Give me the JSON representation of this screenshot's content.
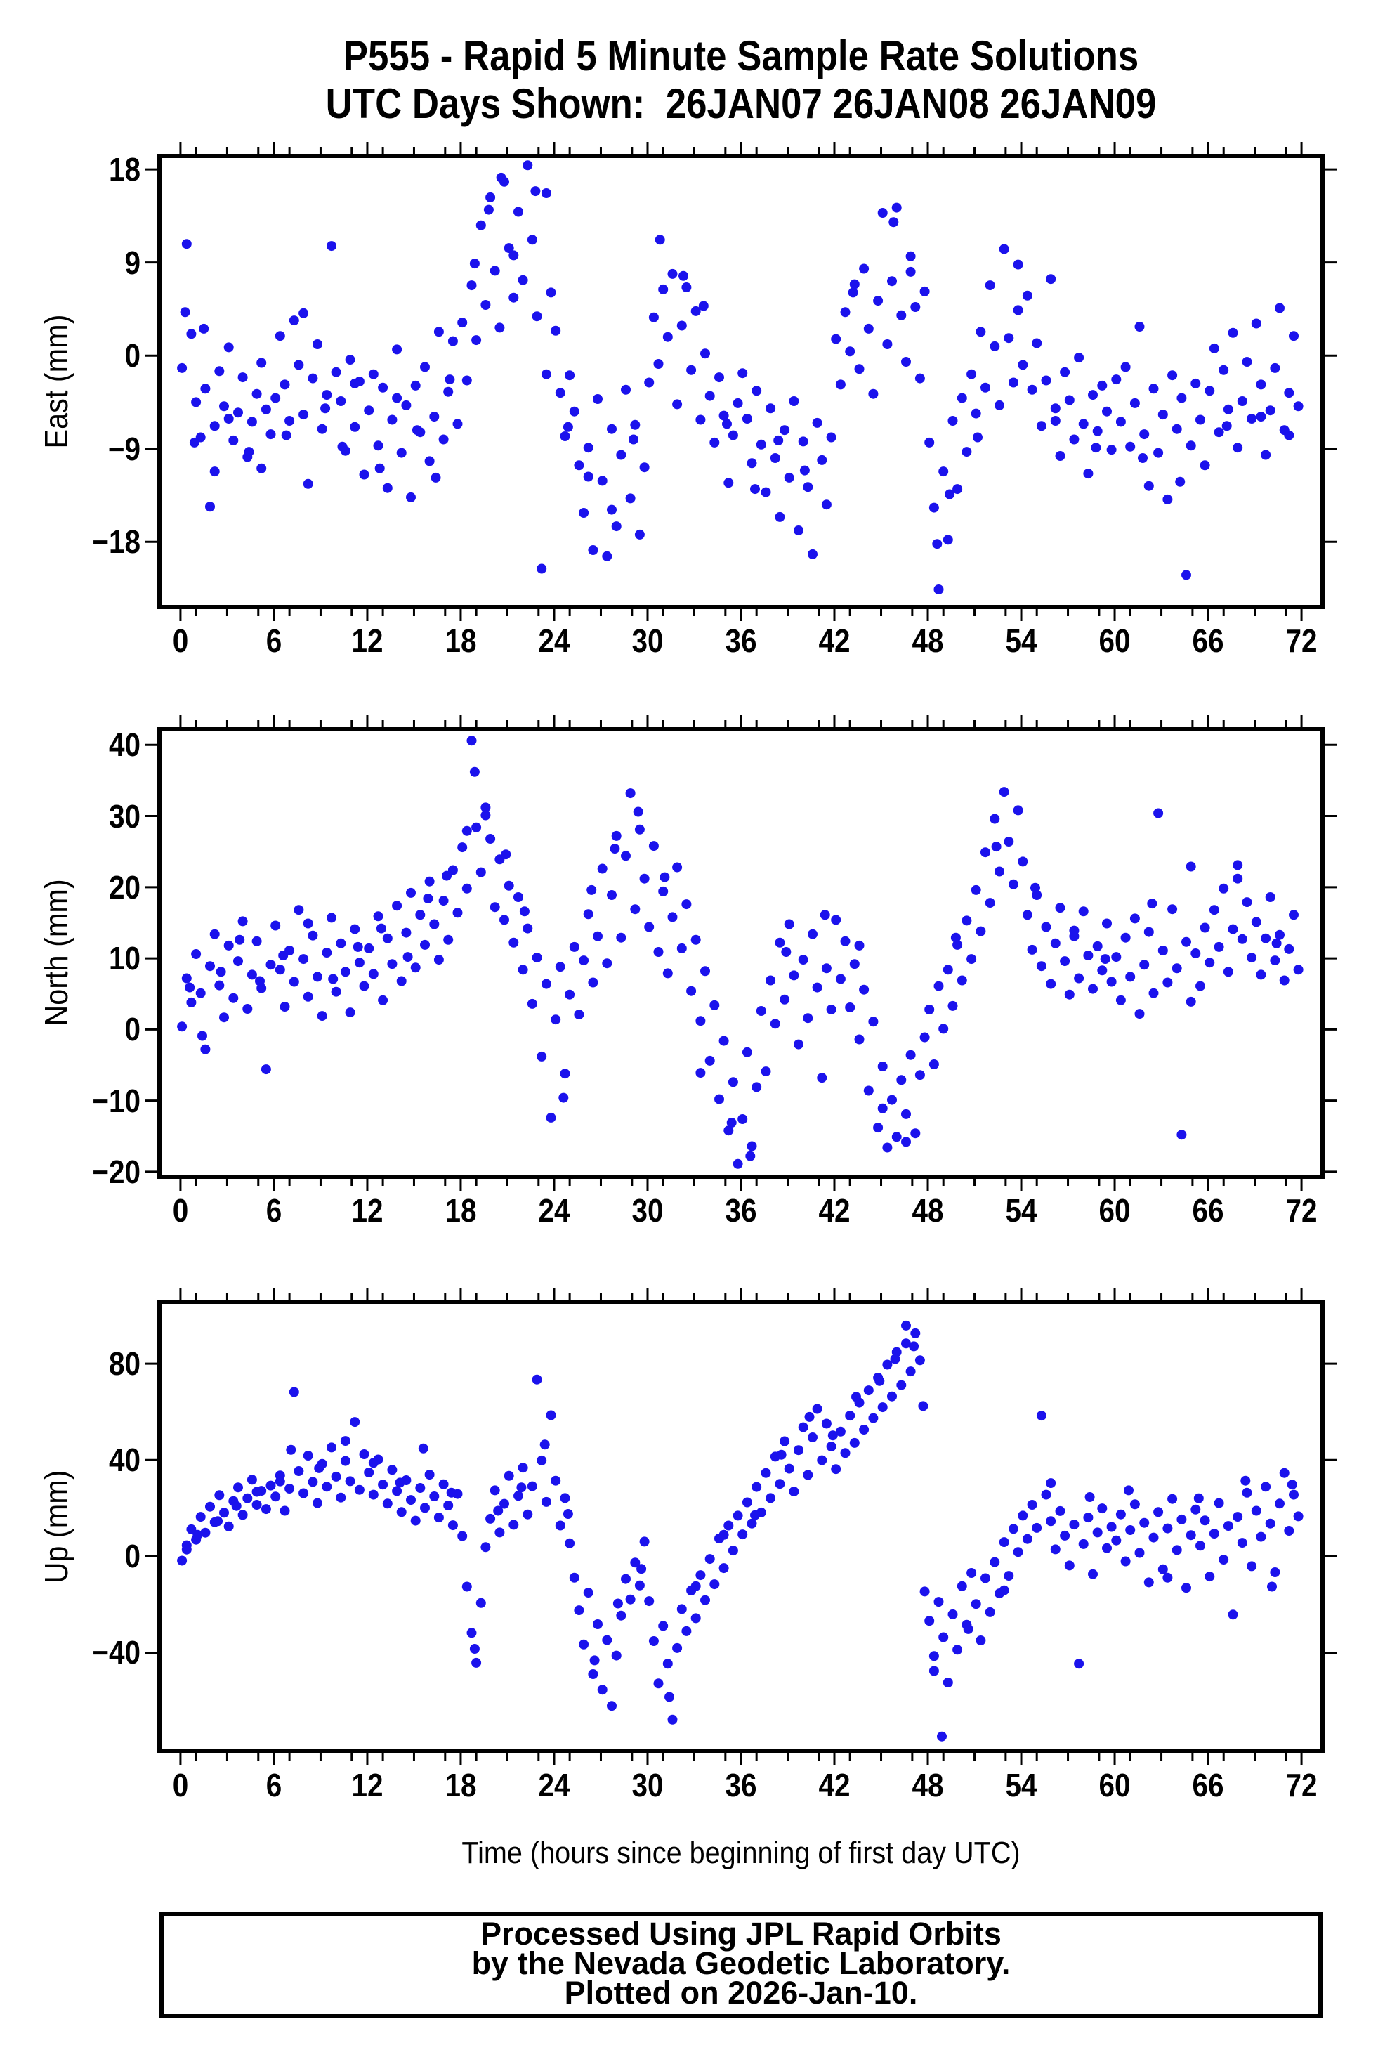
{
  "title": {
    "line1": "P555 - Rapid 5 Minute Sample Rate Solutions",
    "line2": "UTC Days Shown:  26JAN07 26JAN08 26JAN09"
  },
  "xaxis": {
    "label": "Time (hours since beginning of first day UTC)",
    "major_ticks": [
      0,
      6,
      12,
      18,
      24,
      30,
      36,
      42,
      48,
      54,
      60,
      66,
      72
    ],
    "minor_step": 2,
    "range": [
      -1.35,
      73.35
    ]
  },
  "footer": {
    "line1": "Processed Using JPL Rapid Orbits",
    "line2": "by the Nevada Geodetic Laboratory.",
    "line3": "Plotted on 2026-Jan-10."
  },
  "style": {
    "point_color": "#1b12ec",
    "frame_color": "#000000",
    "point_radius": 7
  },
  "chart_data": [
    {
      "type": "scatter",
      "name": "east",
      "ylabel": "East (mm)",
      "yticks": [
        18,
        9,
        0,
        -9,
        -18
      ],
      "yrange": [
        -24.3,
        19.3
      ],
      "x_start": 0.1,
      "x_step": 0.3,
      "y": [
        -1.2,
        10.8,
        2.1,
        -4.5,
        -7.9,
        -3.2,
        -14.6,
        -6.8,
        -1.5,
        -4.9,
        0.8,
        -8.2,
        -5.5,
        -2.1,
        -9.8,
        -6.4,
        -3.7,
        -10.9,
        -5.2,
        -7.6,
        -4.1,
        1.9,
        -2.8,
        -6.3,
        3.4,
        -0.9,
        -5.7,
        -12.4,
        -2.2,
        1.1,
        -7.1,
        -3.8,
        10.6,
        -1.6,
        -4.4,
        -9.2,
        -0.4,
        -6.9,
        -2.5,
        -11.5,
        -5.3,
        -1.8,
        -8.7,
        -3.1,
        -12.8,
        -6.2,
        0.6,
        -9.4,
        -4.8,
        -13.7,
        -2.9,
        -7.4,
        -1.1,
        -10.2,
        -5.9,
        2.3,
        -8.1,
        -3.5,
        1.4,
        -6.6,
        3.2,
        -2.4,
        6.8,
        1.5,
        12.6,
        4.9,
        15.3,
        8.2,
        2.7,
        16.8,
        10.4,
        5.6,
        13.9,
        7.3,
        18.4,
        11.2,
        3.8,
        -20.6,
        15.7,
        6.1,
        2.4,
        -3.6,
        -7.8,
        -1.9,
        -5.4,
        -10.6,
        -15.2,
        -8.9,
        -18.8,
        -4.2,
        -12.1,
        -19.4,
        -7.1,
        -16.5,
        -9.6,
        -3.3,
        -13.8,
        -6.7,
        -17.3,
        -10.8,
        -2.6,
        3.7,
        -0.8,
        6.4,
        1.8,
        7.9,
        -4.7,
        2.9,
        6.6,
        -1.4,
        4.3,
        -6.2,
        0.2,
        -3.9,
        -8.4,
        -2.1,
        -5.8,
        -12.3,
        -7.7,
        -4.6,
        -1.7,
        -6.1,
        -10.4,
        -3.4,
        -8.6,
        -13.2,
        -5.1,
        -9.9,
        -15.6,
        -7.2,
        -11.8,
        -4.4,
        -16.9,
        -8.3,
        -12.7,
        -19.2,
        -6.5,
        -10.1,
        -14.4,
        -7.9,
        1.6,
        -2.8,
        4.2,
        0.4,
        6.9,
        -1.3,
        8.4,
        2.6,
        -3.7,
        5.3,
        13.8,
        1.1,
        7.2,
        14.3,
        3.9,
        -0.6,
        9.6,
        4.7,
        -2.2,
        6.2,
        -8.4,
        -14.7,
        -22.6,
        -11.2,
        -17.8,
        -6.3,
        -12.9,
        -4.1,
        -9.3,
        -1.8,
        -5.6,
        2.3,
        -3.1,
        6.8,
        0.9,
        -4.8,
        10.3,
        1.7,
        -2.6,
        4.4,
        -0.9,
        5.8,
        -3.3,
        1.2,
        -6.8,
        -2.4,
        7.4,
        -5.1,
        -9.7,
        -1.6,
        -4.3,
        -8.1,
        -0.2,
        -6.6,
        -11.4,
        -3.8,
        -7.3,
        -2.9,
        -5.4,
        -9.1,
        -2.3,
        -6.4,
        -1.1,
        -8.8,
        -4.6,
        2.8,
        -7.6,
        -12.6,
        -3.2,
        -9.4,
        -5.7,
        -13.9,
        -1.9,
        -7.1,
        -4.1,
        -21.2,
        -8.7,
        -2.7,
        -6.2,
        -10.6,
        -3.4,
        0.7,
        -7.4,
        -1.4,
        -5.2,
        2.2,
        -8.9,
        -4.4,
        -0.6,
        -6.1,
        3.1,
        -2.8,
        -9.6,
        -5.3,
        -1.2,
        4.6,
        -7.2,
        -3.6,
        1.9,
        -4.9
      ],
      "extra_points": [
        [
          0.3,
          4.2
        ],
        [
          0.9,
          -8.4
        ],
        [
          1.5,
          2.6
        ],
        [
          2.2,
          -11.2
        ],
        [
          3.1,
          -6.1
        ],
        [
          4.4,
          -9.3
        ],
        [
          5.2,
          -0.7
        ],
        [
          6.8,
          -7.7
        ],
        [
          7.9,
          4.1
        ],
        [
          9.3,
          -5.1
        ],
        [
          10.4,
          -8.8
        ],
        [
          11.2,
          -2.7
        ],
        [
          12.8,
          -10.9
        ],
        [
          13.9,
          -4.1
        ],
        [
          15.2,
          -7.2
        ],
        [
          16.4,
          -11.8
        ],
        [
          17.3,
          -2.3
        ],
        [
          18.9,
          8.9
        ],
        [
          19.8,
          14.1
        ],
        [
          20.6,
          17.2
        ],
        [
          21.4,
          9.7
        ],
        [
          22.8,
          15.9
        ],
        [
          23.5,
          -1.8
        ],
        [
          24.9,
          -6.9
        ],
        [
          26.2,
          -11.7
        ],
        [
          27.7,
          -14.9
        ],
        [
          29.1,
          -8.1
        ],
        [
          30.8,
          11.2
        ],
        [
          32.3,
          7.7
        ],
        [
          33.6,
          4.8
        ],
        [
          35.1,
          -6.6
        ],
        [
          36.9,
          -12.9
        ],
        [
          38.4,
          -8.2
        ],
        [
          40.1,
          -11.1
        ],
        [
          43.2,
          6.1
        ],
        [
          45.8,
          12.9
        ],
        [
          46.9,
          8.1
        ],
        [
          48.6,
          -18.2
        ],
        [
          49.4,
          -13.4
        ],
        [
          51.2,
          -7.9
        ],
        [
          53.8,
          8.8
        ],
        [
          56.2,
          -6.3
        ],
        [
          58.8,
          -8.9
        ],
        [
          61.8,
          -9.9
        ],
        [
          64.2,
          -12.2
        ],
        [
          67.2,
          -6.8
        ],
        [
          69.4,
          -5.9
        ],
        [
          71.2,
          -7.7
        ]
      ]
    },
    {
      "type": "scatter",
      "name": "north",
      "ylabel": "North (mm)",
      "yticks": [
        40,
        30,
        20,
        10,
        0,
        -10,
        -20
      ],
      "yrange": [
        -20.7,
        42.2
      ],
      "x_start": 0.1,
      "x_step": 0.3,
      "y": [
        0.4,
        7.2,
        3.8,
        10.6,
        5.1,
        -2.8,
        8.9,
        13.4,
        6.2,
        1.7,
        11.8,
        4.4,
        9.6,
        15.2,
        2.9,
        7.7,
        12.4,
        5.8,
        -5.6,
        9.1,
        14.6,
        8.4,
        3.2,
        11.1,
        6.7,
        16.8,
        9.9,
        4.6,
        13.2,
        7.4,
        1.9,
        10.8,
        15.7,
        5.3,
        12.1,
        8.1,
        2.4,
        14.1,
        9.4,
        6.1,
        11.4,
        7.8,
        15.9,
        4.1,
        12.8,
        9.2,
        17.4,
        6.8,
        13.6,
        19.2,
        8.7,
        16.1,
        11.9,
        20.8,
        14.8,
        9.8,
        18.1,
        12.6,
        22.4,
        16.4,
        25.6,
        19.8,
        40.6,
        28.4,
        22.1,
        31.2,
        26.8,
        17.2,
        23.9,
        15.4,
        20.2,
        12.2,
        18.6,
        8.4,
        14.2,
        3.6,
        10.1,
        -3.8,
        6.4,
        -12.4,
        1.4,
        8.8,
        -6.2,
        4.9,
        11.6,
        2.1,
        9.7,
        16.2,
        6.6,
        13.1,
        22.6,
        9.3,
        18.9,
        27.2,
        12.9,
        24.4,
        33.2,
        16.9,
        28.1,
        21.2,
        14.4,
        25.8,
        10.9,
        19.4,
        7.9,
        15.8,
        22.8,
        11.4,
        17.6,
        5.4,
        12.6,
        1.2,
        8.2,
        -4.4,
        3.4,
        -9.8,
        -1.6,
        -14.2,
        -7.4,
        -18.9,
        -12.6,
        -3.2,
        -16.4,
        -8.1,
        2.6,
        -5.9,
        6.9,
        0.8,
        12.2,
        4.2,
        14.8,
        7.6,
        -2.1,
        9.8,
        1.6,
        13.4,
        5.9,
        -6.8,
        8.6,
        2.8,
        15.4,
        7.1,
        12.4,
        3.1,
        9.2,
        -1.4,
        5.6,
        -8.6,
        1.1,
        -13.8,
        -5.2,
        -16.6,
        -9.9,
        -15.1,
        -7.1,
        -11.9,
        -3.6,
        -14.6,
        -6.4,
        -1.1,
        2.8,
        -4.9,
        6.1,
        0.1,
        8.4,
        3.3,
        11.9,
        6.9,
        15.3,
        9.9,
        19.6,
        13.8,
        24.9,
        17.8,
        29.6,
        22.2,
        33.4,
        26.4,
        20.4,
        30.8,
        23.6,
        16.1,
        11.2,
        18.9,
        8.9,
        14.4,
        6.4,
        12.1,
        17.1,
        9.6,
        4.9,
        13.9,
        7.2,
        16.6,
        10.4,
        5.7,
        11.7,
        8.3,
        14.9,
        6.7,
        10.2,
        4.1,
        12.9,
        7.4,
        15.6,
        2.2,
        9.1,
        13.7,
        5.1,
        30.4,
        11.1,
        6.6,
        16.9,
        8.6,
        -14.8,
        12.3,
        3.9,
        10.7,
        6.1,
        14.3,
        9.4,
        16.8,
        11.6,
        19.8,
        8.1,
        14.1,
        21.2,
        12.7,
        17.9,
        10.1,
        15.1,
        7.7,
        12.8,
        18.6,
        9.7,
        13.3,
        6.9,
        11.3,
        16.1,
        8.4
      ],
      "extra_points": [
        [
          0.6,
          5.9
        ],
        [
          1.4,
          -0.9
        ],
        [
          2.6,
          8.1
        ],
        [
          3.8,
          12.6
        ],
        [
          5.1,
          6.8
        ],
        [
          6.6,
          10.4
        ],
        [
          8.2,
          14.9
        ],
        [
          9.8,
          7.1
        ],
        [
          11.4,
          11.6
        ],
        [
          12.9,
          14.2
        ],
        [
          14.6,
          10.2
        ],
        [
          15.9,
          18.4
        ],
        [
          17.1,
          21.6
        ],
        [
          18.4,
          27.9
        ],
        [
          18.9,
          36.2
        ],
        [
          19.6,
          30.1
        ],
        [
          20.9,
          24.6
        ],
        [
          22.1,
          16.6
        ],
        [
          24.6,
          -9.6
        ],
        [
          26.4,
          19.6
        ],
        [
          27.9,
          25.4
        ],
        [
          29.4,
          30.6
        ],
        [
          31.1,
          21.4
        ],
        [
          33.4,
          -6.1
        ],
        [
          35.4,
          -13.1
        ],
        [
          36.6,
          -17.8
        ],
        [
          38.9,
          10.9
        ],
        [
          41.4,
          16.1
        ],
        [
          43.6,
          11.8
        ],
        [
          45.1,
          -11.1
        ],
        [
          46.6,
          -15.8
        ],
        [
          49.8,
          12.9
        ],
        [
          52.4,
          25.7
        ],
        [
          54.9,
          19.9
        ],
        [
          57.4,
          13.1
        ],
        [
          59.4,
          9.9
        ],
        [
          62.4,
          17.7
        ],
        [
          64.9,
          22.9
        ],
        [
          67.9,
          23.1
        ],
        [
          70.4,
          12.1
        ]
      ]
    },
    {
      "type": "scatter",
      "name": "up",
      "ylabel": "Up (mm)",
      "yticks": [
        80,
        40,
        0,
        -40
      ],
      "yrange": [
        -81.0,
        105.7
      ],
      "x_start": 0.1,
      "x_step": 0.3,
      "y": [
        -1.8,
        4.6,
        11.2,
        6.9,
        16.4,
        9.8,
        20.6,
        14.2,
        25.4,
        18.1,
        12.4,
        22.9,
        28.6,
        17.2,
        24.1,
        31.8,
        21.4,
        27.2,
        19.6,
        29.4,
        24.8,
        33.6,
        18.9,
        28.1,
        68.2,
        35.4,
        26.2,
        41.8,
        30.9,
        22.1,
        38.4,
        28.9,
        45.2,
        33.1,
        24.4,
        39.6,
        31.2,
        55.8,
        27.6,
        42.4,
        34.8,
        25.6,
        40.2,
        29.8,
        21.9,
        35.9,
        27.1,
        18.4,
        31.6,
        23.4,
        14.8,
        28.4,
        20.1,
        33.9,
        24.9,
        16.1,
        29.9,
        21.1,
        12.9,
        25.9,
        8.4,
        -12.6,
        -31.8,
        -44.2,
        -19.4,
        3.8,
        15.6,
        27.4,
        9.9,
        21.8,
        33.4,
        13.1,
        25.1,
        36.8,
        17.4,
        29.1,
        73.4,
        39.8,
        22.6,
        58.6,
        31.4,
        12.8,
        24.2,
        5.4,
        -8.9,
        -22.4,
        -36.6,
        -15.1,
        -48.9,
        -28.2,
        -55.4,
        -34.8,
        -62.1,
        -41.2,
        -24.6,
        -9.4,
        -17.9,
        -2.6,
        -12.1,
        6.1,
        -18.6,
        -35.2,
        -52.8,
        -28.9,
        -44.6,
        -67.8,
        -38.1,
        -21.9,
        -31.1,
        -14.2,
        -25.7,
        -7.8,
        -18.2,
        -1.1,
        -11.6,
        7.4,
        -4.9,
        12.8,
        2.4,
        16.9,
        9.1,
        22.4,
        13.6,
        28.8,
        18.2,
        34.6,
        24.2,
        41.4,
        30.1,
        47.8,
        36.4,
        26.9,
        44.1,
        53.6,
        33.8,
        49.4,
        61.2,
        39.9,
        55.1,
        45.6,
        36.2,
        51.8,
        42.9,
        58.4,
        47.1,
        63.8,
        52.6,
        68.9,
        57.4,
        74.2,
        61.9,
        79.6,
        66.4,
        84.8,
        71.1,
        88.4,
        76.8,
        92.6,
        81.4,
        -14.6,
        -26.8,
        -41.4,
        -18.9,
        -33.6,
        -52.4,
        -24.1,
        -38.8,
        -12.4,
        -28.4,
        -6.9,
        -19.8,
        -34.9,
        -9.1,
        -23.2,
        -2.4,
        -15.4,
        5.9,
        -8.1,
        11.4,
        1.8,
        16.9,
        7.2,
        21.4,
        11.8,
        58.4,
        25.6,
        14.6,
        2.9,
        18.8,
        8.6,
        -3.8,
        13.2,
        -44.6,
        5.1,
        16.1,
        -7.4,
        9.9,
        19.9,
        3.4,
        12.2,
        6.6,
        17.4,
        -2.1,
        10.9,
        21.6,
        1.4,
        13.9,
        -10.8,
        7.8,
        18.4,
        -5.4,
        11.6,
        23.8,
        2.6,
        15.3,
        -13.1,
        8.8,
        19.4,
        4.4,
        14.9,
        -8.4,
        9.4,
        22.1,
        -1.4,
        12.6,
        -24.2,
        16.4,
        5.6,
        26.4,
        -4.1,
        18.9,
        8.1,
        28.9,
        13.6,
        -6.6,
        21.9,
        34.6,
        10.6,
        25.6,
        16.6
      ],
      "extra_points": [
        [
          0.4,
          2.8
        ],
        [
          1.1,
          8.9
        ],
        [
          2.4,
          14.6
        ],
        [
          3.6,
          20.9
        ],
        [
          4.9,
          26.8
        ],
        [
          6.4,
          31.1
        ],
        [
          7.1,
          44.2
        ],
        [
          8.9,
          36.6
        ],
        [
          10.6,
          47.9
        ],
        [
          12.4,
          38.8
        ],
        [
          14.1,
          30.6
        ],
        [
          15.6,
          44.8
        ],
        [
          17.4,
          26.4
        ],
        [
          18.9,
          -38.4
        ],
        [
          20.4,
          18.9
        ],
        [
          21.9,
          28.6
        ],
        [
          23.4,
          46.4
        ],
        [
          24.9,
          17.6
        ],
        [
          26.6,
          -43.2
        ],
        [
          28.1,
          -19.6
        ],
        [
          29.6,
          -5.2
        ],
        [
          31.4,
          -58.4
        ],
        [
          33.1,
          -12.4
        ],
        [
          34.9,
          8.9
        ],
        [
          36.9,
          17.1
        ],
        [
          38.6,
          42.2
        ],
        [
          40.4,
          57.9
        ],
        [
          41.9,
          50.2
        ],
        [
          43.4,
          66.2
        ],
        [
          44.9,
          72.8
        ],
        [
          45.9,
          81.9
        ],
        [
          46.6,
          95.8
        ],
        [
          47.1,
          87.2
        ],
        [
          47.7,
          62.4
        ],
        [
          48.4,
          -47.6
        ],
        [
          48.9,
          -74.8
        ],
        [
          50.6,
          -30.2
        ],
        [
          52.9,
          -14.1
        ],
        [
          55.9,
          30.4
        ],
        [
          58.4,
          24.6
        ],
        [
          60.9,
          27.4
        ],
        [
          63.4,
          -8.9
        ],
        [
          65.4,
          24.1
        ],
        [
          68.4,
          31.4
        ],
        [
          70.1,
          -12.6
        ],
        [
          71.4,
          29.8
        ]
      ]
    }
  ]
}
